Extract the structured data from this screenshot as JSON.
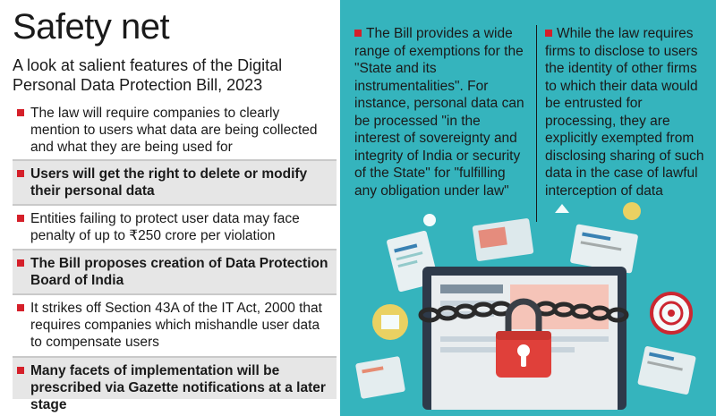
{
  "title": "Safety net",
  "subtitle": "A look at salient features of the Digital Personal Data Protection Bill, 2023",
  "points": [
    "The law will require companies to clearly mention to users what data are being collected and what they are being used for",
    "Users will get the right to delete or modify their personal data",
    "Entities failing to protect user data may face penalty of up to ₹250 crore per violation",
    "The Bill proposes creation of Data Protection Board of India",
    "It strikes off Section 43A of the IT Act, 2000 that requires companies which mishandle user data to compensate users",
    "Many facets of implementation will be prescribed via Gazette notifications at a later stage"
  ],
  "right": {
    "col1": "The Bill provides a wide range of exemptions for the \"State and its instrumentalities\". For instance, personal data can be processed \"in the interest of sovereignty and integrity of India or security of the State\" for \"fulfilling any obligation under law\"",
    "col2": "While the law requires firms to disclose to users the identity of other firms to which their data would be entrusted for processing, they are explicitly exempted from disclosing sharing of such data in the case of lawful interception of data"
  },
  "colors": {
    "accent_red": "#d5202a",
    "panel_teal": "#35b4bd",
    "shade_grey": "#e6e6e6"
  }
}
